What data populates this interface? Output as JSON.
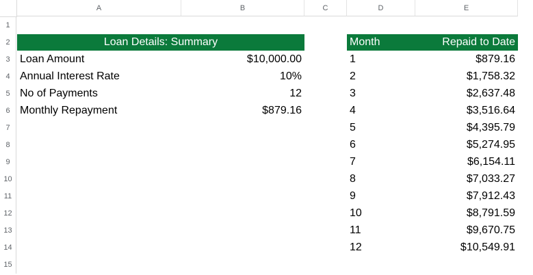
{
  "columns": [
    "A",
    "B",
    "C",
    "D",
    "E"
  ],
  "rows": [
    "1",
    "2",
    "3",
    "4",
    "5",
    "6",
    "7",
    "8",
    "9",
    "10",
    "11",
    "12",
    "13",
    "14",
    "15"
  ],
  "summary": {
    "title": "Loan Details: Summary",
    "items": [
      {
        "label": "Loan Amount",
        "value": "$10,000.00"
      },
      {
        "label": "Annual Interest Rate",
        "value": "10%"
      },
      {
        "label": "No of Payments",
        "value": "12"
      },
      {
        "label": "Monthly Repayment",
        "value": "$879.16"
      }
    ]
  },
  "schedule": {
    "headers": {
      "month": "Month",
      "repaid": "Repaid to Date"
    },
    "rows": [
      {
        "month": "1",
        "repaid": "$879.16"
      },
      {
        "month": "2",
        "repaid": "$1,758.32"
      },
      {
        "month": "3",
        "repaid": "$2,637.48"
      },
      {
        "month": "4",
        "repaid": "$3,516.64"
      },
      {
        "month": "5",
        "repaid": "$4,395.79"
      },
      {
        "month": "6",
        "repaid": "$5,274.95"
      },
      {
        "month": "7",
        "repaid": "$6,154.11"
      },
      {
        "month": "8",
        "repaid": "$7,033.27"
      },
      {
        "month": "9",
        "repaid": "$7,912.43"
      },
      {
        "month": "10",
        "repaid": "$8,791.59"
      },
      {
        "month": "11",
        "repaid": "$9,670.75"
      },
      {
        "month": "12",
        "repaid": "$10,549.91"
      }
    ]
  },
  "colors": {
    "header_fill": "#0b7a3b",
    "header_text": "#ffffff"
  }
}
